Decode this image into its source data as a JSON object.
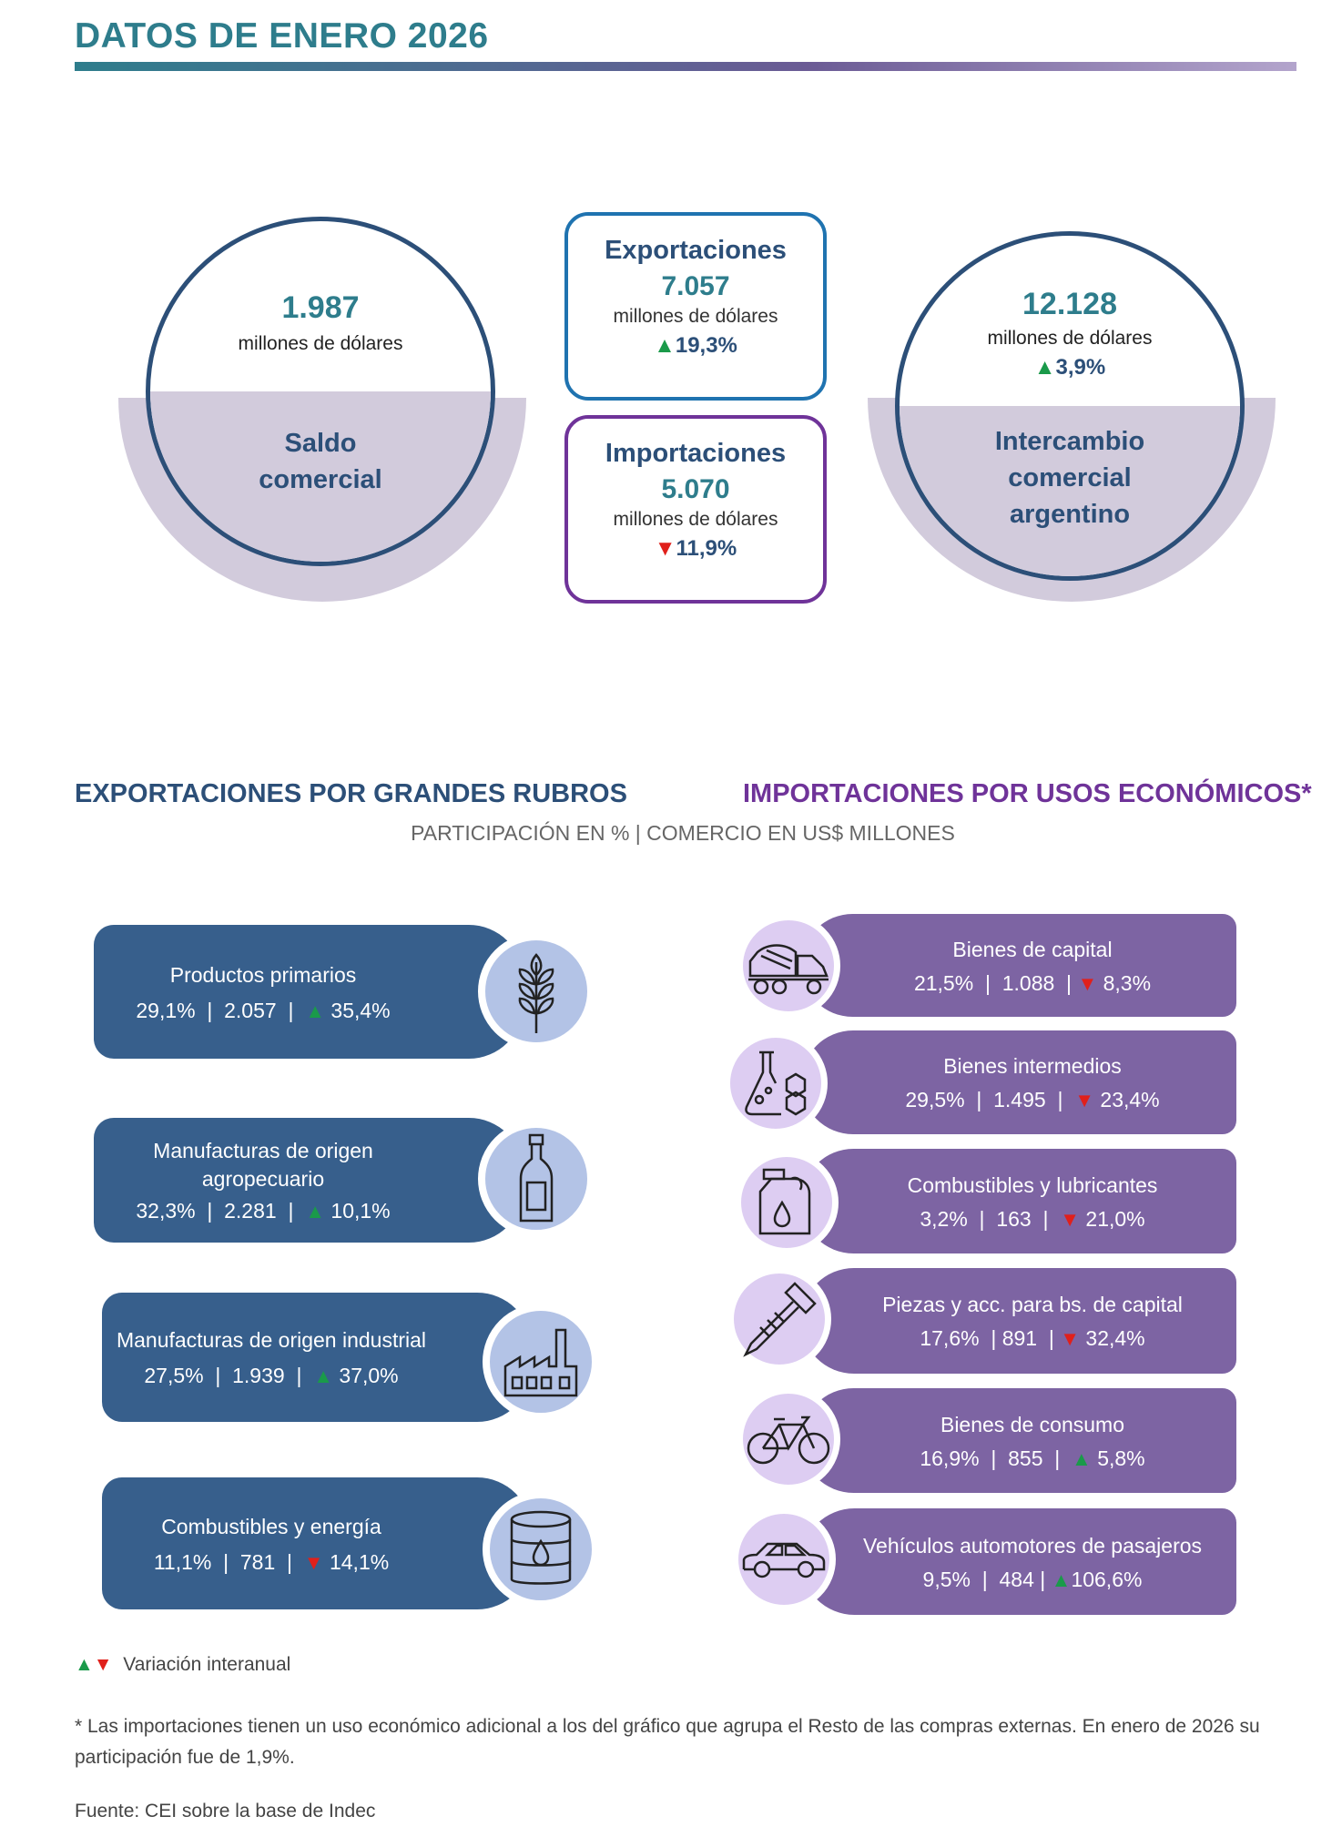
{
  "header": {
    "title": "DATOS DE ENERO 2026"
  },
  "saldo": {
    "value": "1.987",
    "unit": "millones de dólares",
    "label_line1": "Saldo",
    "label_line2": "comercial"
  },
  "exportaciones": {
    "label": "Exportaciones",
    "value": "7.057",
    "unit": "millones de dólares",
    "arrow": "▲",
    "variation": "19,3%",
    "border_color": "#1f73b0"
  },
  "importaciones": {
    "label": "Importaciones",
    "value": "5.070",
    "unit": "millones de dólares",
    "arrow": "▼",
    "variation": "11,9%",
    "border_color": "#6f3399"
  },
  "intercambio": {
    "value": "12.128",
    "unit": "millones de dólares",
    "arrow": "▲",
    "variation": "3,9%",
    "label_line1": "Intercambio",
    "label_line2": "comercial",
    "label_line3": "argentino"
  },
  "sections": {
    "exports_title": "EXPORTACIONES POR GRANDES RUBROS",
    "imports_title": "IMPORTACIONES POR USOS ECONÓMICOS*",
    "subtitle": "PARTICIPACIÓN EN % | COMERCIO EN US$ MILLONES"
  },
  "exports": [
    {
      "name": "Productos primarios",
      "share": "29,1%",
      "value": "2.057",
      "arrow": "▲",
      "variation": "35,4%",
      "icon": "wheat-icon"
    },
    {
      "name": "Manufacturas de origen agropecuario",
      "share": "32,3%",
      "value": "2.281",
      "arrow": "▲",
      "variation": "10,1%",
      "icon": "bottle-icon"
    },
    {
      "name": "Manufacturas de origen industrial",
      "share": "27,5%",
      "value": "1.939",
      "arrow": "▲",
      "variation": "37,0%",
      "icon": "factory-icon"
    },
    {
      "name": "Combustibles y energía",
      "share": "11,1%",
      "value": "781",
      "arrow": "▼",
      "variation": "14,1%",
      "icon": "oil-barrel-icon"
    }
  ],
  "imports": [
    {
      "name": "Bienes de capital",
      "share": "21,5%",
      "value": "1.088",
      "arrow": "▼",
      "variation": "8,3%",
      "icon": "concrete-mixer-icon"
    },
    {
      "name": "Bienes intermedios",
      "share": "29,5%",
      "value": "1.495",
      "arrow": "▼",
      "variation": "23,4%",
      "icon": "chemistry-flask-icon"
    },
    {
      "name": "Combustibles y lubricantes",
      "share": "3,2%",
      "value": "163",
      "arrow": "▼",
      "variation": "21,0%",
      "icon": "fuel-can-icon"
    },
    {
      "name": "Piezas y acc. para bs. de capital",
      "share": "17,6%",
      "value": "891",
      "arrow": "▼",
      "variation": "32,4%",
      "icon": "screw-icon"
    },
    {
      "name": "Bienes de consumo",
      "share": "16,9%",
      "value": "855",
      "arrow": "▲",
      "variation": "5,8%",
      "icon": "bicycle-icon"
    },
    {
      "name": "Vehículos automotores de pasajeros",
      "share": "9,5%",
      "value": "484",
      "arrow": "▲",
      "variation": "106,6%",
      "icon": "car-icon"
    }
  ],
  "legend": {
    "up": "▲",
    "down": "▼",
    "text": "Variación interanual"
  },
  "footnote": "* Las importaciones tienen un uso económico adicional a los del gráfico que agrupa el Resto de las compras externas. En enero de 2026 su participación fue de 1,9%.",
  "source": "Fuente: CEI sobre la base de Indec",
  "colors": {
    "up": "#1a9a4a",
    "down": "#e0201b",
    "export_pill": "#375f8c",
    "import_pill": "#7d64a3"
  }
}
